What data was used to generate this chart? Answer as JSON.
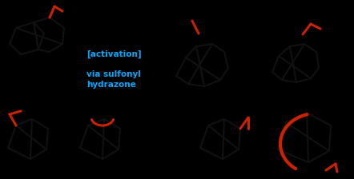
{
  "background_color": "#000000",
  "text_color_blue": "#00aaff",
  "bond_color_black": "#111111",
  "bond_color_red": "#cc2200",
  "activation_text": "[activation]",
  "via_text": "via sulfonyl\nhydrazone",
  "figsize": [
    4.42,
    2.24
  ],
  "dpi": 100,
  "lw_black": 1.5,
  "lw_red": 2.2
}
